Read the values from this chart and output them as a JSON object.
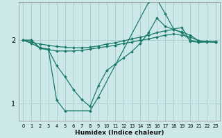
{
  "xlabel": "Humidex (Indice chaleur)",
  "background_color": "#cce8e8",
  "grid_color": "#aacece",
  "line_color": "#1a7a6a",
  "xlim": [
    -0.5,
    23.5
  ],
  "ylim": [
    0.72,
    2.6
  ],
  "yticks": [
    1,
    2
  ],
  "xtick_labels": [
    "0",
    "1",
    "2",
    "3",
    "4",
    "5",
    "6",
    "7",
    "8",
    "9",
    "10",
    "11",
    "12",
    "13",
    "14",
    "15",
    "16",
    "17",
    "18",
    "19",
    "20",
    "21",
    "22",
    "23"
  ],
  "series": [
    {
      "x": [
        0,
        1,
        2,
        3,
        4,
        5,
        6,
        7,
        8,
        9,
        10,
        11,
        12,
        13,
        14,
        15,
        16,
        17,
        18,
        19,
        20,
        21,
        22,
        23
      ],
      "y": [
        2.0,
        1.95,
        1.88,
        1.85,
        1.83,
        1.83,
        1.83,
        1.84,
        1.86,
        1.88,
        1.9,
        1.92,
        1.95,
        1.97,
        2.0,
        2.02,
        2.05,
        2.08,
        2.1,
        2.08,
        2.05,
        1.99,
        1.98,
        1.97
      ]
    },
    {
      "x": [
        0,
        1,
        2,
        3,
        4,
        5,
        6,
        7,
        8,
        9,
        10,
        11,
        12,
        13,
        14,
        15,
        16,
        17,
        18,
        19,
        20,
        21,
        22,
        23
      ],
      "y": [
        2.0,
        1.97,
        1.94,
        1.92,
        1.9,
        1.89,
        1.88,
        1.88,
        1.89,
        1.91,
        1.94,
        1.96,
        1.99,
        2.02,
        2.05,
        2.08,
        2.12,
        2.15,
        2.17,
        2.13,
        2.08,
        1.99,
        1.98,
        1.97
      ]
    },
    {
      "x": [
        0,
        1,
        2,
        3,
        4,
        5,
        6,
        7,
        8,
        9,
        10,
        11,
        12,
        13,
        14,
        15,
        16,
        17,
        18,
        19,
        20,
        21,
        22,
        23
      ],
      "y": [
        2.0,
        2.0,
        1.87,
        1.85,
        1.6,
        1.42,
        1.22,
        1.06,
        0.95,
        1.28,
        1.52,
        1.62,
        1.72,
        1.82,
        1.95,
        2.12,
        2.35,
        2.22,
        2.17,
        2.12,
        2.0,
        1.97,
        1.98,
        1.98
      ]
    },
    {
      "x": [
        0,
        1,
        2,
        3,
        4,
        5,
        8,
        9,
        15,
        16,
        17,
        18,
        19,
        20,
        21,
        22,
        23
      ],
      "y": [
        2.0,
        2.0,
        1.88,
        1.86,
        1.05,
        0.88,
        0.88,
        1.1,
        2.6,
        2.65,
        2.42,
        2.18,
        2.2,
        1.98,
        1.97,
        1.97,
        1.97
      ]
    }
  ]
}
